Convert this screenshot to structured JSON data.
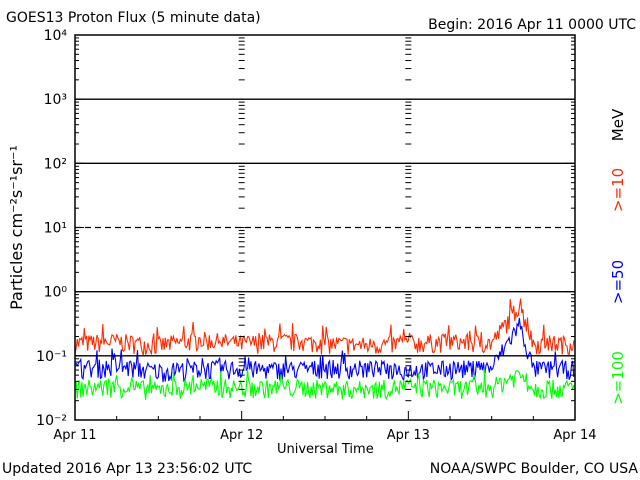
{
  "header": {
    "title": "GOES13 Proton Flux (5 minute data)",
    "begin": "Begin: 2016 Apr 11 0000 UTC"
  },
  "footer": {
    "updated": "Updated 2016 Apr 13 23:56:02 UTC",
    "source": "NOAA/SWPC Boulder, CO USA"
  },
  "chart_data": {
    "type": "line",
    "title": "GOES13 Proton Flux (5 minute data)",
    "xlabel": "Universal Time",
    "ylabel": "Particles cm⁻²s⁻¹sr⁻¹",
    "yscale": "log",
    "ylim": [
      0.01,
      10000
    ],
    "x_ticks": [
      "Apr 11",
      "Apr 12",
      "Apr 13",
      "Apr 14"
    ],
    "y_ticks": [
      "10⁻²",
      "10⁻¹",
      "10⁰",
      "10¹",
      "10²",
      "10³",
      "10⁴"
    ],
    "right_label_unit": "MeV",
    "reference_lines": [
      {
        "value": 10,
        "style": "dashed"
      },
      {
        "value": 1,
        "style": "solid"
      },
      {
        "value": 100,
        "style": "solid"
      },
      {
        "value": 1000,
        "style": "solid"
      },
      {
        "value": 0.1,
        "style": "solid"
      }
    ],
    "series": [
      {
        "name": ">=10",
        "color": "#ff2a00",
        "x": [
          "2016-04-11 00:00",
          "2016-04-11 06:00",
          "2016-04-11 12:00",
          "2016-04-11 18:00",
          "2016-04-12 00:00",
          "2016-04-12 06:00",
          "2016-04-12 12:00",
          "2016-04-12 18:00",
          "2016-04-13 00:00",
          "2016-04-13 06:00",
          "2016-04-13 12:00",
          "2016-04-13 16:00",
          "2016-04-13 18:00",
          "2016-04-13 23:55"
        ],
        "values": [
          0.15,
          0.16,
          0.14,
          0.17,
          0.15,
          0.16,
          0.15,
          0.14,
          0.15,
          0.16,
          0.15,
          0.6,
          0.15,
          0.15
        ]
      },
      {
        "name": ">=50",
        "color": "#0000ff",
        "x": [
          "2016-04-11 00:00",
          "2016-04-11 06:00",
          "2016-04-11 12:00",
          "2016-04-11 18:00",
          "2016-04-12 00:00",
          "2016-04-12 06:00",
          "2016-04-12 12:00",
          "2016-04-12 18:00",
          "2016-04-13 00:00",
          "2016-04-13 06:00",
          "2016-04-13 12:00",
          "2016-04-13 16:00",
          "2016-04-13 18:00",
          "2016-04-13 23:55"
        ],
        "values": [
          0.06,
          0.065,
          0.055,
          0.06,
          0.06,
          0.058,
          0.062,
          0.06,
          0.058,
          0.06,
          0.062,
          0.3,
          0.06,
          0.06
        ]
      },
      {
        "name": ">=100",
        "color": "#00ff00",
        "x": [
          "2016-04-11 00:00",
          "2016-04-11 06:00",
          "2016-04-11 12:00",
          "2016-04-11 18:00",
          "2016-04-12 00:00",
          "2016-04-12 06:00",
          "2016-04-12 12:00",
          "2016-04-12 18:00",
          "2016-04-13 00:00",
          "2016-04-13 06:00",
          "2016-04-13 12:00",
          "2016-04-13 16:00",
          "2016-04-13 18:00",
          "2016-04-13 23:55"
        ],
        "values": [
          0.03,
          0.032,
          0.028,
          0.033,
          0.03,
          0.031,
          0.03,
          0.029,
          0.032,
          0.03,
          0.031,
          0.05,
          0.03,
          0.03
        ]
      }
    ],
    "grid": false
  }
}
